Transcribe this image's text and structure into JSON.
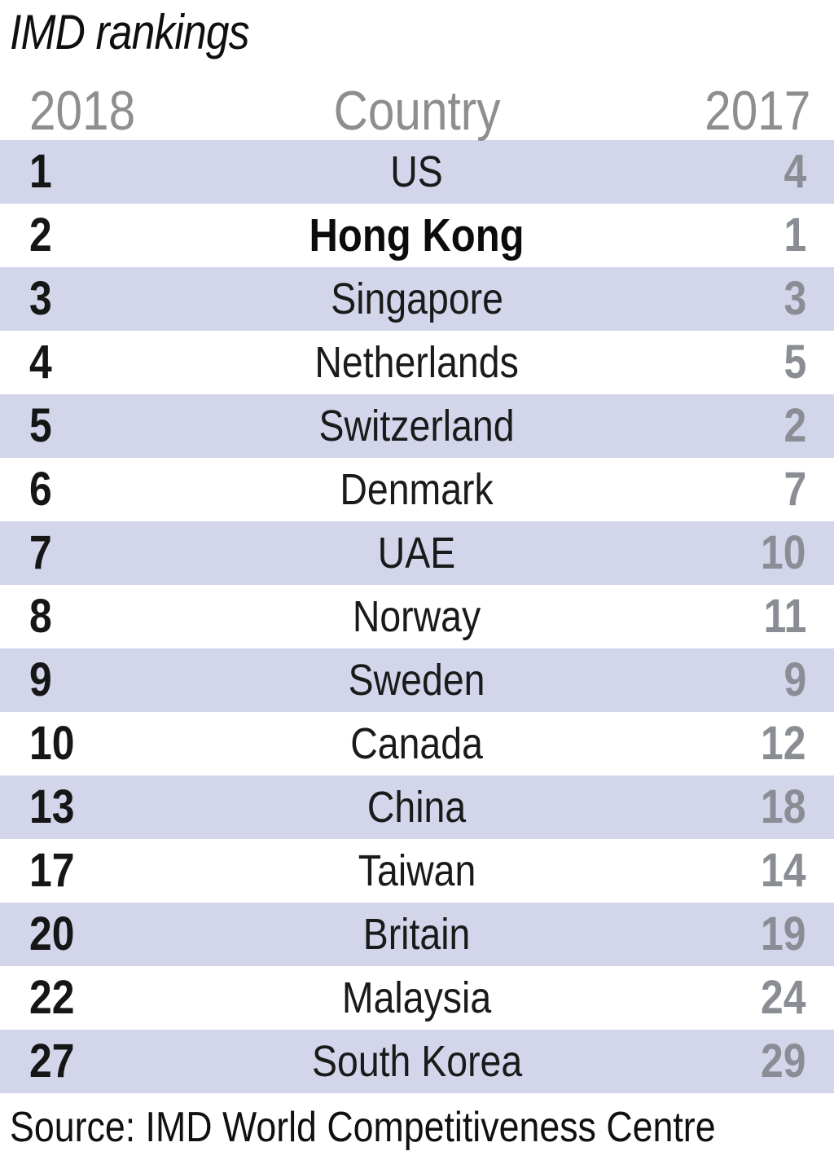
{
  "title": "IMD rankings",
  "header": {
    "col_2018": "2018",
    "col_country": "Country",
    "col_2017": "2017"
  },
  "source_note": "Source: IMD World Competitiveness Centre",
  "colors": {
    "row_alt_background": "#d3d5eb",
    "header_gray": "#8e8e8e",
    "prev_rank_gray": "#8a8d93",
    "text_black": "#141414"
  },
  "chart_data": {
    "type": "table",
    "title": "IMD rankings",
    "columns": [
      "2018",
      "Country",
      "2017"
    ],
    "rows": [
      {
        "rank_2018": "1",
        "country": "US",
        "rank_2017": "4",
        "highlight": false
      },
      {
        "rank_2018": "2",
        "country": "Hong Kong",
        "rank_2017": "1",
        "highlight": true
      },
      {
        "rank_2018": "3",
        "country": "Singapore",
        "rank_2017": "3",
        "highlight": false
      },
      {
        "rank_2018": "4",
        "country": "Netherlands",
        "rank_2017": "5",
        "highlight": false
      },
      {
        "rank_2018": "5",
        "country": "Switzerland",
        "rank_2017": "2",
        "highlight": false
      },
      {
        "rank_2018": "6",
        "country": "Denmark",
        "rank_2017": "7",
        "highlight": false
      },
      {
        "rank_2018": "7",
        "country": "UAE",
        "rank_2017": "10",
        "highlight": false
      },
      {
        "rank_2018": "8",
        "country": "Norway",
        "rank_2017": "11",
        "highlight": false
      },
      {
        "rank_2018": "9",
        "country": "Sweden",
        "rank_2017": "9",
        "highlight": false
      },
      {
        "rank_2018": "10",
        "country": "Canada",
        "rank_2017": "12",
        "highlight": false
      },
      {
        "rank_2018": "13",
        "country": "China",
        "rank_2017": "18",
        "highlight": false
      },
      {
        "rank_2018": "17",
        "country": "Taiwan",
        "rank_2017": "14",
        "highlight": false
      },
      {
        "rank_2018": "20",
        "country": "Britain",
        "rank_2017": "19",
        "highlight": false
      },
      {
        "rank_2018": "22",
        "country": "Malaysia",
        "rank_2017": "24",
        "highlight": false
      },
      {
        "rank_2018": "27",
        "country": "South Korea",
        "rank_2017": "29",
        "highlight": false
      }
    ],
    "layout": {
      "alternating_rows": true,
      "first_row_shaded": true,
      "rank_2018_align": "left",
      "country_align": "center",
      "rank_2017_align": "right"
    },
    "source": "Source: IMD World Competitiveness Centre"
  }
}
